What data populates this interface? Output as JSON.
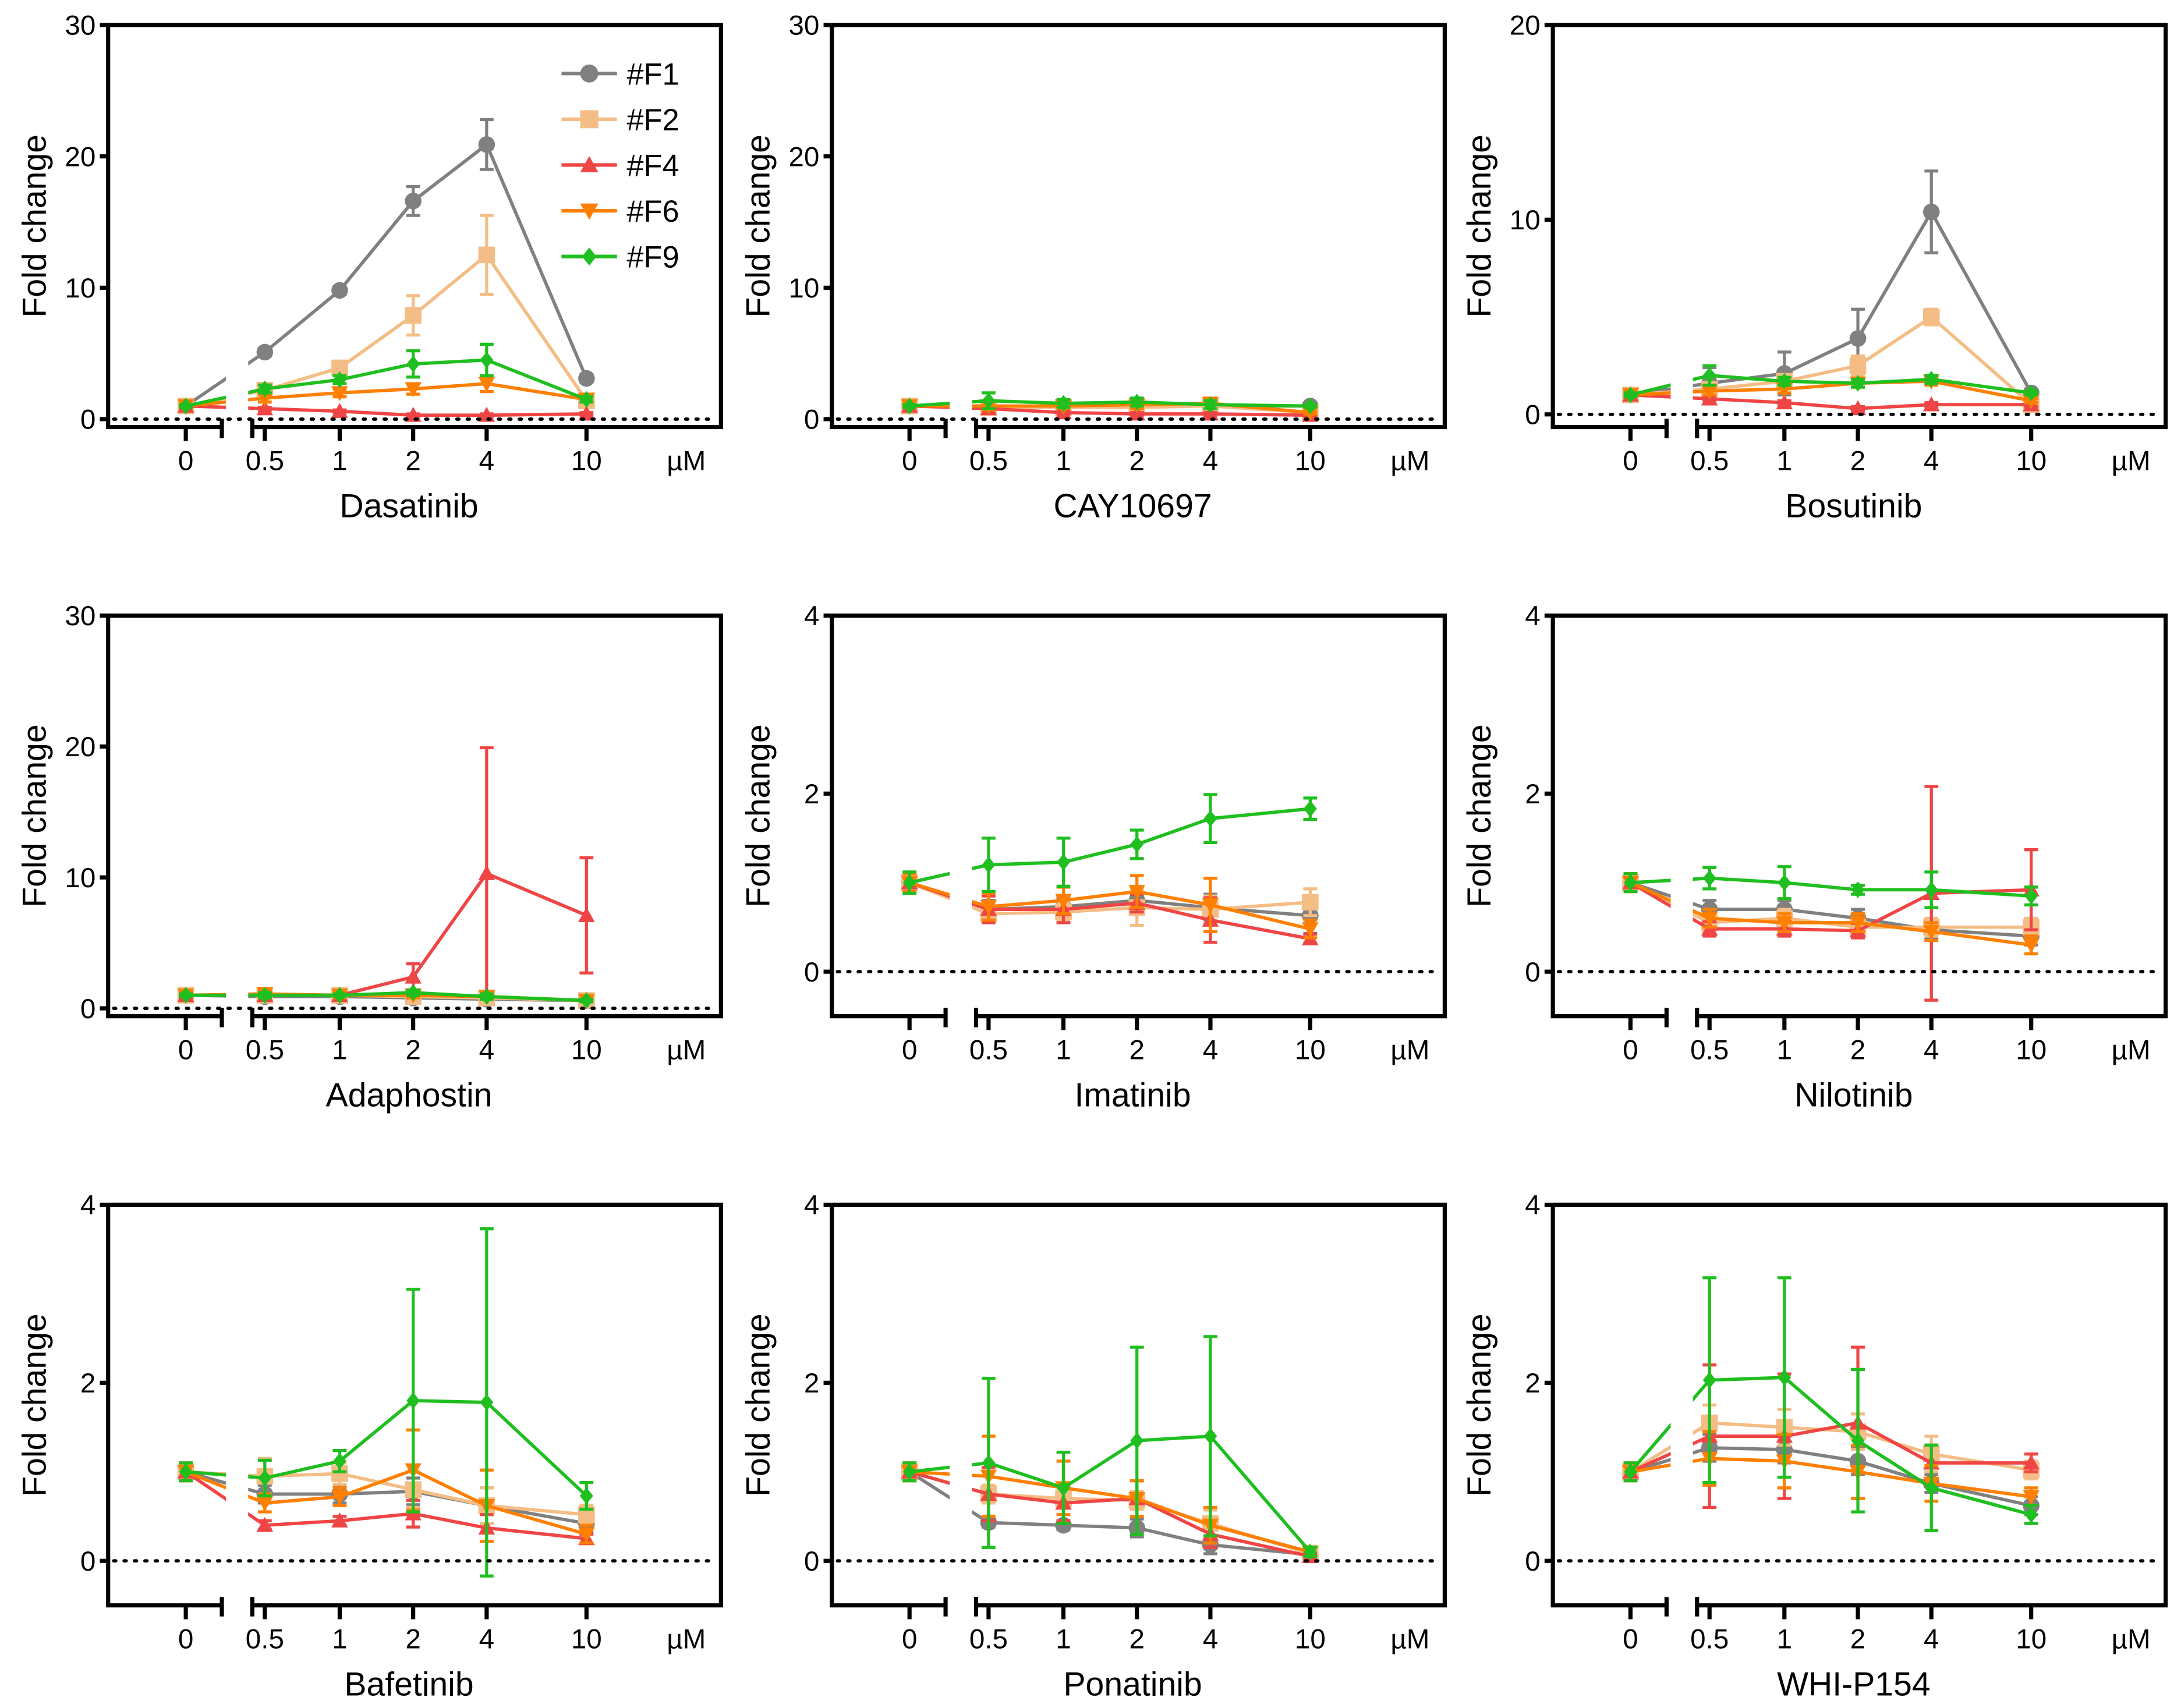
{
  "chart_data": {
    "type": "line",
    "x_categories": [
      "0",
      "0.5",
      "1",
      "2",
      "4",
      "10"
    ],
    "x_unit": "µM",
    "ylabel": "Fold change",
    "legend": {
      "placement": "top-right",
      "panel": "Dasatinib"
    },
    "series_styles": [
      {
        "name": "#F1",
        "color": "#808080",
        "marker": "circle"
      },
      {
        "name": "#F2",
        "color": "#F4BD85",
        "marker": "square"
      },
      {
        "name": "#F4",
        "color": "#F04545",
        "marker": "triangle-up"
      },
      {
        "name": "#F6",
        "color": "#FF7F00",
        "marker": "triangle-down"
      },
      {
        "name": "#F9",
        "color": "#1FBF1F",
        "marker": "diamond"
      }
    ],
    "reference_line": {
      "y": 0,
      "style": "dotted"
    },
    "panels": [
      {
        "xlabel": "Dasatinib",
        "ylim": [
          -0.6,
          30
        ],
        "yticks": [
          0,
          10,
          20,
          30
        ],
        "series": [
          {
            "name": "#F1",
            "values": [
              1,
              5.1,
              9.8,
              16.6,
              20.9,
              3.1
            ],
            "errors": [
              0.2,
              0.3,
              0.3,
              1.1,
              1.9,
              0.3
            ]
          },
          {
            "name": "#F2",
            "values": [
              1,
              2.2,
              3.9,
              7.9,
              12.5,
              1.4
            ],
            "errors": [
              0.3,
              0.3,
              0.4,
              1.5,
              3.0,
              0.3
            ]
          },
          {
            "name": "#F4",
            "values": [
              1,
              0.8,
              0.6,
              0.3,
              0.3,
              0.4
            ],
            "errors": [
              0.1,
              0.1,
              0.1,
              0.1,
              0.1,
              0.1
            ]
          },
          {
            "name": "#F6",
            "values": [
              1,
              1.6,
              2.0,
              2.3,
              2.7,
              1.5
            ],
            "errors": [
              0.1,
              0.3,
              0.3,
              0.4,
              0.6,
              0.2
            ]
          },
          {
            "name": "#F9",
            "values": [
              1,
              2.3,
              3.0,
              4.2,
              4.5,
              1.5
            ],
            "errors": [
              0.1,
              0.3,
              0.3,
              1.0,
              1.2,
              0.2
            ]
          }
        ]
      },
      {
        "xlabel": "CAY10697",
        "ylim": [
          -0.6,
          30
        ],
        "yticks": [
          0,
          10,
          20,
          30
        ],
        "series": [
          {
            "name": "#F1",
            "values": [
              1,
              1.0,
              0.9,
              1.0,
              1.0,
              1.0
            ],
            "errors": [
              0.2,
              0.3,
              0.2,
              0.2,
              0.2,
              0.1
            ]
          },
          {
            "name": "#F2",
            "values": [
              1,
              0.9,
              0.9,
              0.9,
              1.0,
              0.5
            ],
            "errors": [
              0.2,
              0.3,
              0.2,
              0.3,
              0.4,
              0.1
            ]
          },
          {
            "name": "#F4",
            "values": [
              1,
              0.8,
              0.5,
              0.4,
              0.4,
              0.3
            ],
            "errors": [
              0.1,
              0.2,
              0.1,
              0.1,
              0.1,
              0.1
            ]
          },
          {
            "name": "#F6",
            "values": [
              1,
              1.0,
              1.0,
              1.1,
              1.2,
              0.5
            ],
            "errors": [
              0.1,
              0.3,
              0.2,
              0.3,
              0.4,
              0.1
            ]
          },
          {
            "name": "#F9",
            "values": [
              1,
              1.4,
              1.2,
              1.3,
              1.1,
              1.0
            ],
            "errors": [
              0.1,
              0.6,
              0.3,
              0.3,
              0.3,
              0.1
            ]
          }
        ]
      },
      {
        "xlabel": "Bosutinib",
        "ylim": [
          -0.65,
          20
        ],
        "yticks": [
          0,
          10,
          20
        ],
        "series": [
          {
            "name": "#F1",
            "values": [
              1,
              1.6,
              2.1,
              3.9,
              10.4,
              1.1
            ],
            "errors": [
              0.1,
              0.8,
              1.1,
              1.5,
              2.1,
              0.2
            ]
          },
          {
            "name": "#F2",
            "values": [
              1,
              1.3,
              1.7,
              2.5,
              5.0,
              0.5
            ],
            "errors": [
              0.2,
              0.2,
              0.3,
              0.5,
              0.4,
              0.2
            ]
          },
          {
            "name": "#F4",
            "values": [
              1,
              0.8,
              0.6,
              0.3,
              0.5,
              0.5
            ],
            "errors": [
              0.1,
              0.1,
              0.1,
              0.1,
              0.1,
              0.1
            ]
          },
          {
            "name": "#F6",
            "values": [
              1,
              1.2,
              1.3,
              1.6,
              1.7,
              0.7
            ],
            "errors": [
              0.1,
              0.2,
              0.2,
              0.2,
              0.2,
              0.1
            ]
          },
          {
            "name": "#F9",
            "values": [
              1,
              2.0,
              1.7,
              1.6,
              1.8,
              1.1
            ],
            "errors": [
              0.1,
              0.5,
              0.2,
              0.2,
              0.2,
              0.1
            ]
          }
        ]
      },
      {
        "xlabel": "Adaphostin",
        "ylim": [
          -0.6,
          30
        ],
        "yticks": [
          0,
          10,
          20,
          30
        ],
        "series": [
          {
            "name": "#F1",
            "values": [
              1,
              0.9,
              0.9,
              0.8,
              0.7,
              0.6
            ],
            "errors": [
              0.1,
              0.1,
              0.1,
              0.1,
              0.1,
              0.1
            ]
          },
          {
            "name": "#F2",
            "values": [
              1,
              1.0,
              1.0,
              0.9,
              0.8,
              0.6
            ],
            "errors": [
              0.1,
              0.2,
              0.1,
              0.1,
              0.1,
              0.1
            ]
          },
          {
            "name": "#F4",
            "values": [
              1,
              1.0,
              1.0,
              2.4,
              10.3,
              7.1
            ],
            "errors": [
              0.2,
              0.2,
              0.3,
              1.0,
              9.6,
              4.4
            ]
          },
          {
            "name": "#F6",
            "values": [
              1,
              1.1,
              1.0,
              1.0,
              0.9,
              0.6
            ],
            "errors": [
              0.1,
              0.2,
              0.2,
              0.2,
              0.2,
              0.1
            ]
          },
          {
            "name": "#F9",
            "values": [
              1,
              1.0,
              1.0,
              1.2,
              0.9,
              0.6
            ],
            "errors": [
              0.1,
              0.2,
              0.1,
              0.2,
              0.2,
              0.1
            ]
          }
        ]
      },
      {
        "xlabel": "Imatinib",
        "ylim": [
          -0.5,
          4
        ],
        "yticks": [
          0,
          2,
          4
        ],
        "series": [
          {
            "name": "#F1",
            "values": [
              1,
              0.7,
              0.73,
              0.8,
              0.72,
              0.63
            ],
            "errors": [
              0.1,
              0.1,
              0.1,
              0.1,
              0.15,
              0.2
            ]
          },
          {
            "name": "#F2",
            "values": [
              1,
              0.65,
              0.67,
              0.72,
              0.7,
              0.78
            ],
            "errors": [
              0.1,
              0.1,
              0.1,
              0.2,
              0.15,
              0.15
            ]
          },
          {
            "name": "#F4",
            "values": [
              1,
              0.7,
              0.7,
              0.77,
              0.58,
              0.37
            ],
            "errors": [
              0.1,
              0.15,
              0.15,
              0.1,
              0.25,
              0.05
            ]
          },
          {
            "name": "#F6",
            "values": [
              1,
              0.73,
              0.8,
              0.9,
              0.75,
              0.48
            ],
            "errors": [
              0.1,
              0.15,
              0.15,
              0.18,
              0.3,
              0.1
            ]
          },
          {
            "name": "#F9",
            "values": [
              1,
              1.2,
              1.23,
              1.43,
              1.72,
              1.83
            ],
            "errors": [
              0.12,
              0.3,
              0.27,
              0.16,
              0.27,
              0.12
            ]
          }
        ]
      },
      {
        "xlabel": "Nilotinib",
        "ylim": [
          -0.5,
          4
        ],
        "yticks": [
          0,
          2,
          4
        ],
        "series": [
          {
            "name": "#F1",
            "values": [
              1,
              0.7,
              0.7,
              0.6,
              0.47,
              0.4
            ],
            "errors": [
              0.1,
              0.1,
              0.1,
              0.1,
              0.1,
              0.1
            ]
          },
          {
            "name": "#F2",
            "values": [
              1,
              0.55,
              0.6,
              0.5,
              0.5,
              0.5
            ],
            "errors": [
              0.1,
              0.1,
              0.1,
              0.1,
              0.1,
              0.1
            ]
          },
          {
            "name": "#F4",
            "values": [
              1,
              0.48,
              0.48,
              0.46,
              0.88,
              0.92
            ],
            "errors": [
              0.1,
              0.08,
              0.08,
              0.08,
              1.2,
              0.45
            ]
          },
          {
            "name": "#F6",
            "values": [
              1,
              0.6,
              0.55,
              0.55,
              0.45,
              0.3
            ],
            "errors": [
              0.1,
              0.1,
              0.1,
              0.1,
              0.1,
              0.1
            ]
          },
          {
            "name": "#F9",
            "values": [
              1,
              1.05,
              1.0,
              0.92,
              0.92,
              0.85
            ],
            "errors": [
              0.1,
              0.12,
              0.18,
              0.05,
              0.2,
              0.1
            ]
          }
        ]
      },
      {
        "xlabel": "Bafetinib",
        "ylim": [
          -0.5,
          4
        ],
        "yticks": [
          0,
          2,
          4
        ],
        "series": [
          {
            "name": "#F1",
            "values": [
              1,
              0.75,
              0.75,
              0.78,
              0.62,
              0.42
            ],
            "errors": [
              0.1,
              0.1,
              0.1,
              0.15,
              0.2,
              0.1
            ]
          },
          {
            "name": "#F2",
            "values": [
              1,
              0.95,
              0.98,
              0.8,
              0.62,
              0.52
            ],
            "errors": [
              0.1,
              0.2,
              0.12,
              0.2,
              0.2,
              0.1
            ]
          },
          {
            "name": "#F4",
            "values": [
              1,
              0.4,
              0.45,
              0.53,
              0.37,
              0.25
            ],
            "errors": [
              0.1,
              0.05,
              0.05,
              0.15,
              0.15,
              0.05
            ]
          },
          {
            "name": "#F6",
            "values": [
              1,
              0.65,
              0.72,
              1.02,
              0.62,
              0.3
            ],
            "errors": [
              0.1,
              0.1,
              0.1,
              0.45,
              0.4,
              0.1
            ]
          },
          {
            "name": "#F9",
            "values": [
              1,
              0.93,
              1.12,
              1.8,
              1.78,
              0.73
            ],
            "errors": [
              0.1,
              0.2,
              0.12,
              1.25,
              1.95,
              0.15
            ]
          }
        ]
      },
      {
        "xlabel": "Ponatinib",
        "ylim": [
          -0.5,
          4
        ],
        "yticks": [
          0,
          2,
          4
        ],
        "series": [
          {
            "name": "#F1",
            "values": [
              1,
              0.43,
              0.4,
              0.37,
              0.18,
              0.07
            ],
            "errors": [
              0.1,
              0.05,
              0.05,
              0.1,
              0.1,
              0.03
            ]
          },
          {
            "name": "#F2",
            "values": [
              1,
              0.75,
              0.7,
              0.68,
              0.42,
              0.08
            ],
            "errors": [
              0.1,
              0.1,
              0.1,
              0.1,
              0.15,
              0.05
            ]
          },
          {
            "name": "#F4",
            "values": [
              1,
              0.75,
              0.65,
              0.7,
              0.3,
              0.05
            ],
            "errors": [
              0.1,
              0.3,
              0.2,
              0.2,
              0.15,
              0.03
            ]
          },
          {
            "name": "#F6",
            "values": [
              1,
              0.95,
              0.82,
              0.7,
              0.4,
              0.1
            ],
            "errors": [
              0.1,
              0.45,
              0.3,
              0.2,
              0.2,
              0.05
            ]
          },
          {
            "name": "#F9",
            "values": [
              1,
              1.1,
              0.82,
              1.35,
              1.4,
              0.1
            ],
            "errors": [
              0.1,
              0.95,
              0.4,
              1.05,
              1.12,
              0.05
            ]
          }
        ]
      },
      {
        "xlabel": "WHI-P154",
        "ylim": [
          -0.5,
          4
        ],
        "yticks": [
          0,
          2,
          4
        ],
        "series": [
          {
            "name": "#F1",
            "values": [
              1,
              1.27,
              1.25,
              1.12,
              0.87,
              0.62
            ],
            "errors": [
              0.1,
              0.15,
              0.15,
              0.15,
              0.1,
              0.1
            ]
          },
          {
            "name": "#F2",
            "values": [
              1,
              1.55,
              1.5,
              1.45,
              1.2,
              1.02
            ],
            "errors": [
              0.1,
              0.2,
              0.2,
              0.2,
              0.2,
              0.1
            ]
          },
          {
            "name": "#F4",
            "values": [
              1,
              1.4,
              1.4,
              1.55,
              1.1,
              1.1
            ],
            "errors": [
              0.1,
              0.8,
              0.7,
              0.85,
              0.2,
              0.1
            ]
          },
          {
            "name": "#F6",
            "values": [
              1,
              1.15,
              1.12,
              1.0,
              0.87,
              0.72
            ],
            "errors": [
              0.1,
              0.3,
              0.3,
              0.3,
              0.2,
              0.1
            ]
          },
          {
            "name": "#F9",
            "values": [
              1,
              2.03,
              2.06,
              1.35,
              0.82,
              0.52
            ],
            "errors": [
              0.1,
              1.15,
              1.12,
              0.8,
              0.48,
              0.1
            ]
          }
        ]
      }
    ]
  }
}
